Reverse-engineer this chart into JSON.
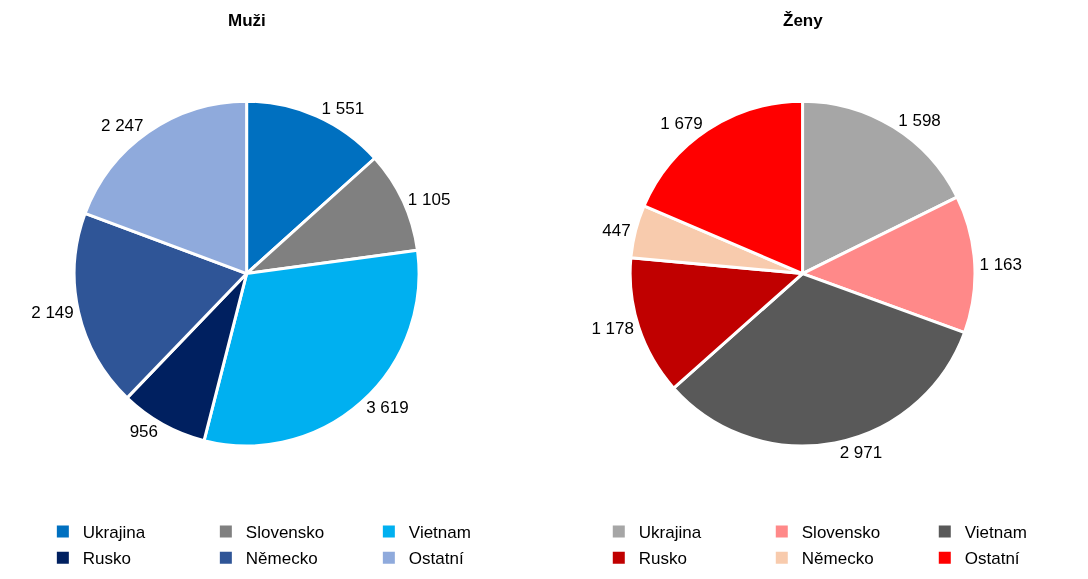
{
  "chart_data": [
    {
      "type": "pie",
      "title": "Muži",
      "categories": [
        "Ukrajina",
        "Slovensko",
        "Vietnam",
        "Rusko",
        "Německo",
        "Ostatní"
      ],
      "values": [
        1551,
        1105,
        3619,
        956,
        2149,
        2247
      ],
      "value_labels": [
        "1 551",
        "1 105",
        "3 619",
        "956",
        "2 149",
        "2 247"
      ],
      "colors": [
        "#0070c0",
        "#808080",
        "#00b0f0",
        "#002060",
        "#2f5597",
        "#8faadc"
      ],
      "legend": "bottom"
    },
    {
      "type": "pie",
      "title": "Ženy",
      "categories": [
        "Ukrajina",
        "Slovensko",
        "Vietnam",
        "Rusko",
        "Německo",
        "Ostatní"
      ],
      "values": [
        1598,
        1163,
        2971,
        1178,
        447,
        1679
      ],
      "value_labels": [
        "1 598",
        "1 163",
        "2 971",
        "1 178",
        "447",
        "1 679"
      ],
      "colors": [
        "#a6a6a6",
        "#ff8989",
        "#595959",
        "#c00000",
        "#f8cbad",
        "#ff0000"
      ],
      "legend": "bottom"
    }
  ]
}
